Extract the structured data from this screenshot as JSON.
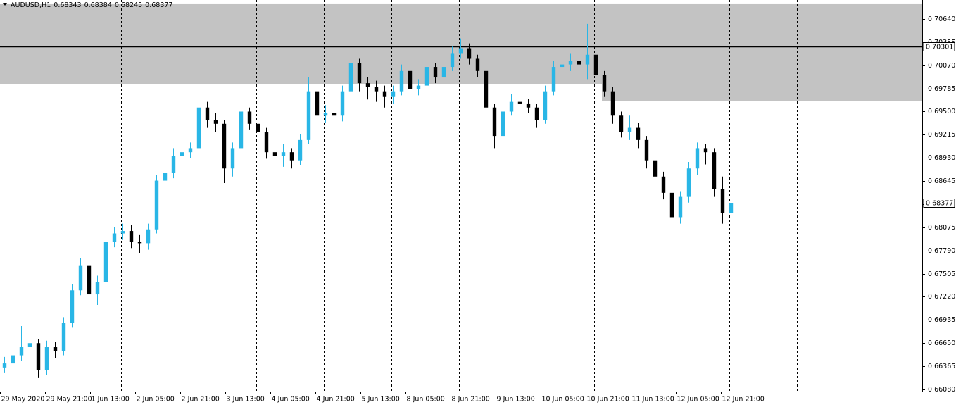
{
  "chart_data": {
    "type": "candlestick",
    "title": "AUDUSD,H1",
    "header_values": [
      0.68343,
      0.68384,
      0.68245,
      0.68377
    ],
    "bull_color": "#29b6e6",
    "bear_color": "#000000",
    "zone_color": "#c3c3c3",
    "xlim": [
      0,
      327.5
    ],
    "ylim": [
      0.66054,
      0.70874
    ],
    "xticks": [
      {
        "value": 0,
        "label": "29 May 2020"
      },
      {
        "value": 16,
        "label": "29 May 21:00"
      },
      {
        "value": 32,
        "label": "1 Jun 13:00"
      },
      {
        "value": 48,
        "label": "2 Jun 05:00"
      },
      {
        "value": 64,
        "label": "2 Jun 21:00"
      },
      {
        "value": 80,
        "label": "3 Jun 13:00"
      },
      {
        "value": 96,
        "label": "4 Jun 05:00"
      },
      {
        "value": 112,
        "label": "4 Jun 21:00"
      },
      {
        "value": 128,
        "label": "5 Jun 13:00"
      },
      {
        "value": 144,
        "label": "8 Jun 05:00"
      },
      {
        "value": 160,
        "label": "8 Jun 21:00"
      },
      {
        "value": 176,
        "label": "9 Jun 13:00"
      },
      {
        "value": 192,
        "label": "10 Jun 05:00"
      },
      {
        "value": 208,
        "label": "10 Jun 21:00"
      },
      {
        "value": 224,
        "label": "11 Jun 13:00"
      },
      {
        "value": 240,
        "label": "12 Jun 05:00"
      },
      {
        "value": 256,
        "label": "12 Jun 21:00"
      }
    ],
    "day_separators": [
      19,
      43,
      67,
      91,
      115,
      139,
      163,
      187,
      211,
      235,
      259,
      283
    ],
    "yticks": [
      {
        "value": 0.7064,
        "label": "0.70640"
      },
      {
        "value": 0.70355,
        "label": "0.70355"
      },
      {
        "value": 0.7007,
        "label": "0.70070"
      },
      0.69785,
      {
        "value": 0.695,
        "label": "0.69500"
      },
      0.69215,
      {
        "value": 0.6893,
        "label": "0.68930"
      },
      0.68645,
      {
        "value": 0.6836,
        "label": "0.68360"
      },
      0.68075,
      {
        "value": 0.6779,
        "label": "0.67790"
      },
      0.67505,
      {
        "value": 0.6722,
        "label": "0.67220"
      },
      0.66935,
      {
        "value": 0.6665,
        "label": "0.66650"
      },
      0.66365,
      {
        "value": 0.6608,
        "label": "0.66080"
      }
    ],
    "zones": [
      {
        "xlim": [
          0,
          327.5
        ],
        "ylim": [
          0.69834,
          0.70831
        ]
      },
      {
        "xlim": [
          213.75,
          327.5
        ],
        "ylim": [
          0.69634,
          0.69834
        ]
      }
    ],
    "price_lines": [
      {
        "value": 0.70301,
        "width": 1.5
      },
      {
        "value": 0.68377,
        "width": 1
      }
    ],
    "candles": [
      [
        1.5,
        0.6635,
        0.6648,
        0.6628,
        0.664
      ],
      [
        4.5,
        0.664,
        0.6658,
        0.6633,
        0.665
      ],
      [
        7.5,
        0.665,
        0.6686,
        0.6643,
        0.666
      ],
      [
        10.5,
        0.666,
        0.6676,
        0.665,
        0.6665
      ],
      [
        13.5,
        0.6665,
        0.667,
        0.6622,
        0.6632
      ],
      [
        16.5,
        0.6632,
        0.6668,
        0.6626,
        0.666
      ],
      [
        19.5,
        0.666,
        0.6667,
        0.6647,
        0.6655
      ],
      [
        22.5,
        0.6655,
        0.6697,
        0.665,
        0.669
      ],
      [
        25.5,
        0.669,
        0.6738,
        0.6684,
        0.673
      ],
      [
        28.5,
        0.673,
        0.677,
        0.6724,
        0.676
      ],
      [
        31.5,
        0.676,
        0.6765,
        0.6715,
        0.6725
      ],
      [
        34.5,
        0.6725,
        0.6748,
        0.6712,
        0.674
      ],
      [
        37.5,
        0.674,
        0.6796,
        0.6735,
        0.679
      ],
      [
        40.5,
        0.679,
        0.6808,
        0.6783,
        0.68
      ],
      [
        43.5,
        0.68,
        0.6812,
        0.6792,
        0.6803
      ],
      [
        46.5,
        0.6803,
        0.681,
        0.6782,
        0.679
      ],
      [
        49.5,
        0.679,
        0.6798,
        0.6776,
        0.6788
      ],
      [
        52.5,
        0.6788,
        0.6812,
        0.678,
        0.6805
      ],
      [
        55.5,
        0.6805,
        0.6872,
        0.68,
        0.6865
      ],
      [
        58.5,
        0.6865,
        0.6882,
        0.6848,
        0.6875
      ],
      [
        61.5,
        0.6875,
        0.6905,
        0.6868,
        0.6895
      ],
      [
        64.5,
        0.6895,
        0.6908,
        0.6888,
        0.69
      ],
      [
        67.5,
        0.69,
        0.6912,
        0.6893,
        0.6905
      ],
      [
        70.5,
        0.6905,
        0.6985,
        0.6898,
        0.6955
      ],
      [
        73.5,
        0.6955,
        0.6962,
        0.693,
        0.694
      ],
      [
        76.5,
        0.694,
        0.6948,
        0.6925,
        0.6935
      ],
      [
        79.5,
        0.6935,
        0.694,
        0.6862,
        0.688
      ],
      [
        82.5,
        0.688,
        0.6912,
        0.687,
        0.6905
      ],
      [
        85.5,
        0.6905,
        0.6958,
        0.6898,
        0.695
      ],
      [
        88.5,
        0.695,
        0.6955,
        0.6928,
        0.6935
      ],
      [
        91.5,
        0.6935,
        0.6942,
        0.6918,
        0.6925
      ],
      [
        94.5,
        0.6925,
        0.693,
        0.6892,
        0.69
      ],
      [
        97.5,
        0.69,
        0.6908,
        0.6885,
        0.6895
      ],
      [
        100.5,
        0.6895,
        0.691,
        0.6882,
        0.69
      ],
      [
        103.5,
        0.69,
        0.6905,
        0.688,
        0.689
      ],
      [
        106.5,
        0.689,
        0.6922,
        0.6884,
        0.6915
      ],
      [
        109.5,
        0.6915,
        0.6992,
        0.691,
        0.6975
      ],
      [
        112.5,
        0.6975,
        0.698,
        0.6935,
        0.6945
      ],
      [
        115.5,
        0.6945,
        0.6958,
        0.6936,
        0.6948
      ],
      [
        118.5,
        0.6948,
        0.6955,
        0.6935,
        0.6945
      ],
      [
        121.5,
        0.6945,
        0.6982,
        0.6938,
        0.6975
      ],
      [
        124.5,
        0.6975,
        0.7018,
        0.697,
        0.701
      ],
      [
        127.5,
        0.701,
        0.7015,
        0.6975,
        0.6985
      ],
      [
        130.5,
        0.6985,
        0.6992,
        0.6965,
        0.698
      ],
      [
        133.5,
        0.698,
        0.6988,
        0.6962,
        0.6975
      ],
      [
        136.5,
        0.6975,
        0.6982,
        0.6955,
        0.6968
      ],
      [
        139.5,
        0.6968,
        0.6982,
        0.696,
        0.6975
      ],
      [
        142.5,
        0.6975,
        0.7008,
        0.697,
        0.7
      ],
      [
        145.5,
        0.7,
        0.7004,
        0.697,
        0.6978
      ],
      [
        148.5,
        0.6978,
        0.699,
        0.697,
        0.6982
      ],
      [
        151.5,
        0.6982,
        0.7012,
        0.6976,
        0.7005
      ],
      [
        154.5,
        0.7005,
        0.701,
        0.6985,
        0.6992
      ],
      [
        157.5,
        0.6992,
        0.7012,
        0.6986,
        0.7005
      ],
      [
        160.5,
        0.7005,
        0.703,
        0.7,
        0.7022
      ],
      [
        163.5,
        0.7022,
        0.704,
        0.7015,
        0.7028
      ],
      [
        166.5,
        0.7028,
        0.7034,
        0.7008,
        0.7015
      ],
      [
        169.5,
        0.7015,
        0.702,
        0.6992,
        0.7
      ],
      [
        172.5,
        0.7,
        0.7004,
        0.6945,
        0.6955
      ],
      [
        175.5,
        0.6955,
        0.696,
        0.6905,
        0.692
      ],
      [
        178.5,
        0.692,
        0.6958,
        0.6912,
        0.695
      ],
      [
        181.5,
        0.695,
        0.6972,
        0.6945,
        0.6962
      ],
      [
        184.5,
        0.6962,
        0.6968,
        0.6952,
        0.696
      ],
      [
        187.5,
        0.696,
        0.6966,
        0.6948,
        0.6955
      ],
      [
        190.5,
        0.6955,
        0.696,
        0.693,
        0.694
      ],
      [
        193.5,
        0.694,
        0.6982,
        0.6935,
        0.6975
      ],
      [
        196.5,
        0.6975,
        0.7012,
        0.697,
        0.7005
      ],
      [
        199.5,
        0.7005,
        0.7015,
        0.6998,
        0.7008
      ],
      [
        202.5,
        0.7008,
        0.7022,
        0.7,
        0.7012
      ],
      [
        205.5,
        0.7012,
        0.7018,
        0.699,
        0.7008
      ],
      [
        208.5,
        0.7008,
        0.7058,
        0.699,
        0.702
      ],
      [
        211.5,
        0.702,
        0.7035,
        0.6988,
        0.6995
      ],
      [
        214.5,
        0.6995,
        0.7,
        0.6968,
        0.6975
      ],
      [
        217.5,
        0.6975,
        0.698,
        0.6935,
        0.6945
      ],
      [
        220.5,
        0.6945,
        0.695,
        0.6918,
        0.6925
      ],
      [
        223.5,
        0.6925,
        0.6945,
        0.6915,
        0.693
      ],
      [
        226.5,
        0.693,
        0.6936,
        0.6905,
        0.6915
      ],
      [
        229.5,
        0.6915,
        0.692,
        0.688,
        0.689
      ],
      [
        232.5,
        0.689,
        0.6895,
        0.686,
        0.687
      ],
      [
        235.5,
        0.687,
        0.6876,
        0.6842,
        0.685
      ],
      [
        238.5,
        0.685,
        0.6856,
        0.6805,
        0.682
      ],
      [
        241.5,
        0.682,
        0.6852,
        0.6812,
        0.6845
      ],
      [
        244.5,
        0.6845,
        0.6888,
        0.6838,
        0.688
      ],
      [
        247.5,
        0.688,
        0.6912,
        0.6872,
        0.6905
      ],
      [
        250.5,
        0.6905,
        0.691,
        0.6885,
        0.69
      ],
      [
        253.5,
        0.69,
        0.6905,
        0.6845,
        0.6855
      ],
      [
        256.5,
        0.6855,
        0.687,
        0.6812,
        0.6825
      ],
      [
        259.5,
        0.6825,
        0.6866,
        0.6812,
        0.68377
      ]
    ]
  }
}
